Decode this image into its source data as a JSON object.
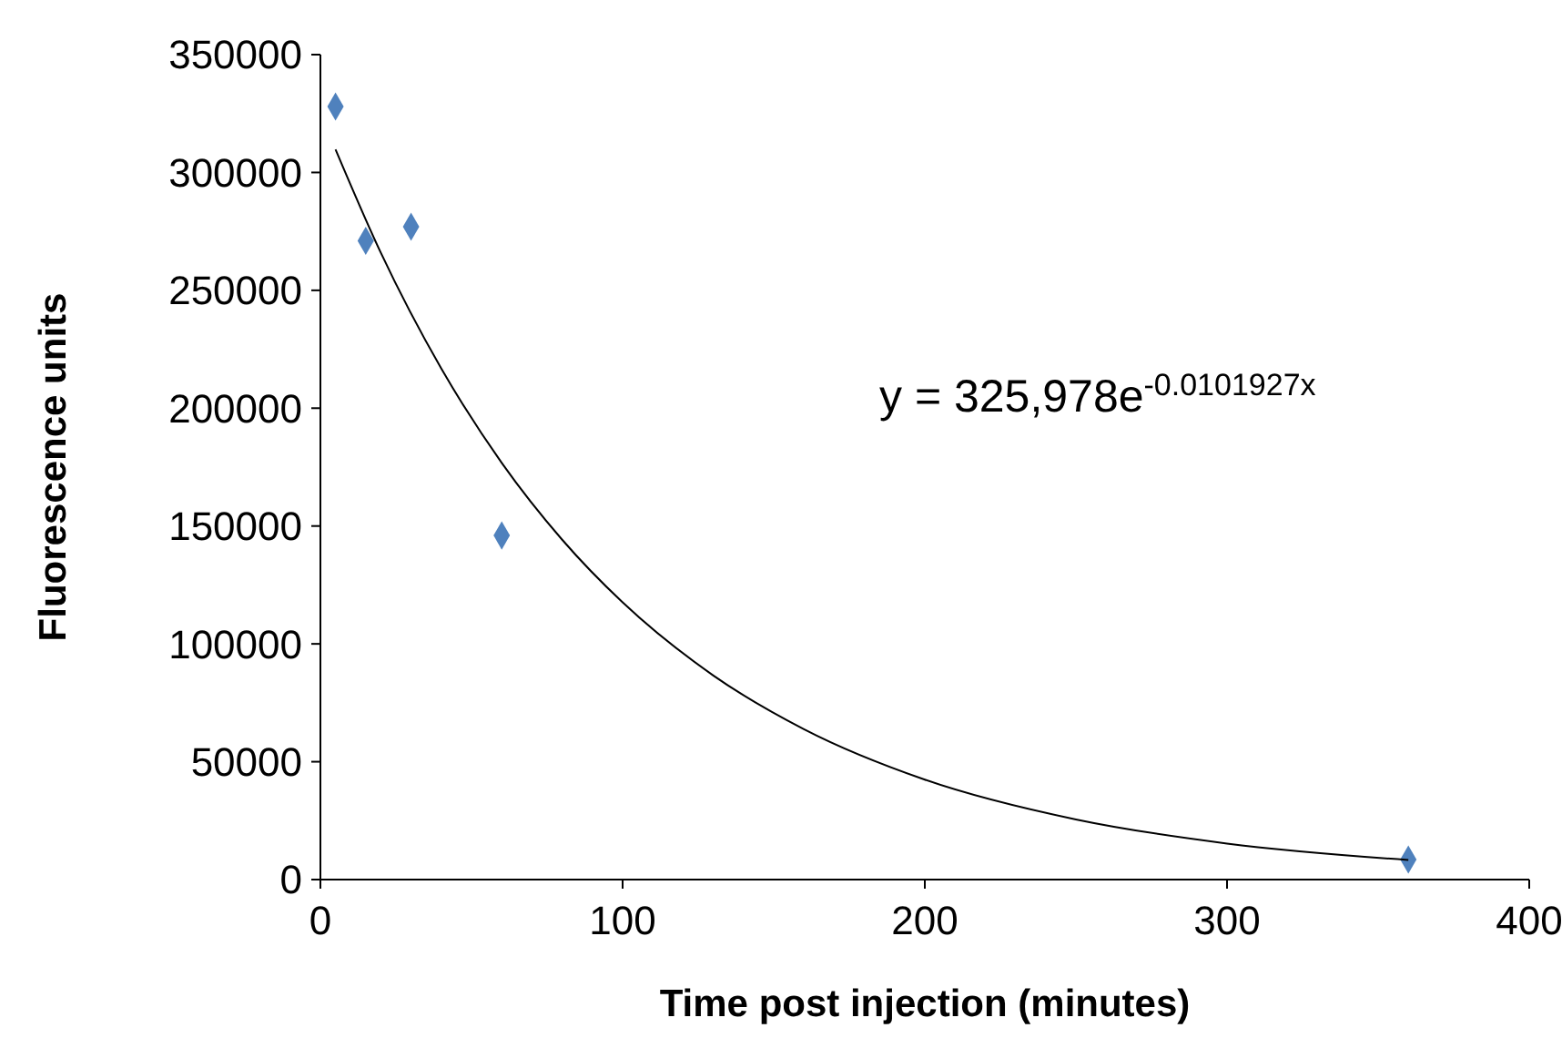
{
  "chart_data": {
    "type": "scatter",
    "xlabel": "Time post injection (minutes)",
    "ylabel": "Fluorescence units",
    "xlim": [
      0,
      400
    ],
    "xticks": [
      0,
      100,
      200,
      300,
      400
    ],
    "ylim": [
      0,
      350000
    ],
    "yticks": [
      0,
      50000,
      100000,
      150000,
      200000,
      250000,
      300000,
      350000
    ],
    "grid": false,
    "annotations": [
      "y = 325,978e$^{-0.0101927x}$"
    ],
    "series": [
      {
        "color": "#4f81bd",
        "marker": "diamond",
        "x": [
          5,
          15,
          30,
          60,
          360
        ],
        "values": [
          328000,
          271000,
          277000,
          146000,
          8500
        ]
      },
      {
        "type": "line",
        "color": "#000000",
        "marker": "none",
        "line_style": "solid",
        "x": [
          5,
          20,
          40,
          60,
          80,
          100,
          130,
          160,
          200,
          250,
          300,
          360
        ],
        "values": [
          309800,
          265900,
          216800,
          176800,
          144200,
          117600,
          86600,
          63800,
          42400,
          25500,
          15300,
          8300
        ]
      }
    ]
  }
}
